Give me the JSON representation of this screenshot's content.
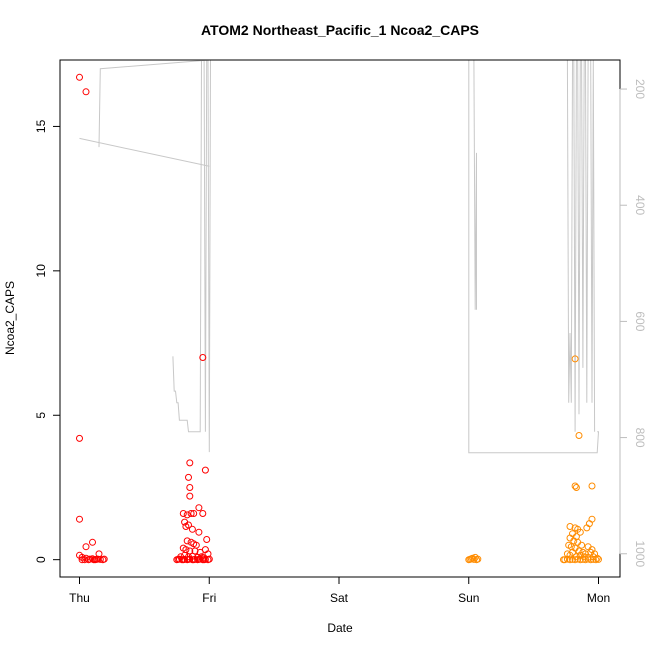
{
  "chart_data": {
    "type": "scatter",
    "title": "ATOM2 Northeast_Pacific_1 Ncoa2_CAPS",
    "xlabel": "Date",
    "ylabel": "Ncoa2_CAPS",
    "x_ticks": [
      "Thu",
      "Fri",
      "Sat",
      "Sun",
      "Mon"
    ],
    "y_ticks": [
      "0",
      "5",
      "10",
      "15"
    ],
    "ylim": [
      -0.6,
      17.3
    ],
    "right_axis": {
      "ticks": [
        "200",
        "400",
        "600",
        "800",
        "1000"
      ],
      "tick_values": [
        200,
        400,
        600,
        800,
        1000
      ],
      "range_top": 150,
      "range_bottom": 1040,
      "reversed": true,
      "color": "#bdbdbd"
    },
    "colors": {
      "red": "#ff0000",
      "orange": "#ff8c00",
      "grey": "#c8c8c8"
    },
    "series": [
      {
        "color": "#ff0000",
        "points": [
          [
            0.0,
            16.7
          ],
          [
            0.05,
            16.2
          ],
          [
            0.0,
            4.2
          ],
          [
            0.0,
            1.4
          ],
          [
            0.1,
            0.6
          ],
          [
            0.05,
            0.45
          ],
          [
            0.0,
            0.15
          ],
          [
            0.02,
            0.08
          ],
          [
            0.05,
            0.05
          ],
          [
            0.08,
            0.02
          ],
          [
            0.1,
            0.03
          ],
          [
            0.12,
            0.0
          ],
          [
            0.14,
            0.02
          ],
          [
            0.15,
            0.2
          ],
          [
            0.16,
            0.01
          ],
          [
            0.04,
            0.0
          ],
          [
            0.07,
            0.0
          ],
          [
            0.11,
            0.0
          ],
          [
            0.13,
            0.01
          ],
          [
            0.02,
            0.0
          ],
          [
            0.18,
            0.0
          ],
          [
            0.19,
            0.02
          ],
          [
            0.95,
            7.0
          ],
          [
            0.85,
            3.35
          ],
          [
            0.97,
            3.1
          ],
          [
            0.84,
            2.85
          ],
          [
            0.85,
            2.5
          ],
          [
            0.85,
            2.2
          ],
          [
            0.83,
            1.55
          ],
          [
            0.86,
            1.6
          ],
          [
            0.88,
            1.6
          ],
          [
            0.92,
            1.8
          ],
          [
            0.95,
            1.6
          ],
          [
            0.8,
            1.6
          ],
          [
            0.81,
            1.3
          ],
          [
            0.82,
            1.15
          ],
          [
            0.84,
            1.2
          ],
          [
            0.87,
            1.05
          ],
          [
            0.92,
            0.95
          ],
          [
            0.98,
            0.7
          ],
          [
            0.83,
            0.65
          ],
          [
            0.86,
            0.6
          ],
          [
            0.88,
            0.55
          ],
          [
            0.9,
            0.5
          ],
          [
            0.8,
            0.4
          ],
          [
            0.82,
            0.35
          ],
          [
            0.85,
            0.3
          ],
          [
            0.89,
            0.3
          ],
          [
            0.93,
            0.25
          ],
          [
            0.97,
            0.35
          ],
          [
            0.99,
            0.2
          ],
          [
            0.78,
            0.1
          ],
          [
            0.81,
            0.15
          ],
          [
            0.84,
            0.1
          ],
          [
            0.87,
            0.12
          ],
          [
            0.91,
            0.08
          ],
          [
            0.94,
            0.1
          ],
          [
            0.96,
            0.06
          ],
          [
            0.75,
            0.0
          ],
          [
            0.77,
            0.02
          ],
          [
            0.79,
            0.0
          ],
          [
            0.81,
            0.01
          ],
          [
            0.83,
            0.0
          ],
          [
            0.85,
            0.02
          ],
          [
            0.87,
            0.0
          ],
          [
            0.89,
            0.01
          ],
          [
            0.91,
            0.0
          ],
          [
            0.93,
            0.02
          ],
          [
            0.95,
            0.0
          ],
          [
            0.97,
            0.01
          ],
          [
            0.99,
            0.0
          ],
          [
            1.0,
            0.02
          ],
          [
            0.76,
            0.01
          ],
          [
            0.8,
            0.0
          ],
          [
            0.84,
            0.01
          ],
          [
            0.88,
            0.0
          ],
          [
            0.92,
            0.01
          ],
          [
            0.96,
            0.0
          ]
        ]
      },
      {
        "color": "#ff8c00",
        "points": [
          [
            3.0,
            0.0
          ],
          [
            3.02,
            0.03
          ],
          [
            3.04,
            0.01
          ],
          [
            3.05,
            0.08
          ],
          [
            3.06,
            0.0
          ],
          [
            3.03,
            0.05
          ],
          [
            3.07,
            0.02
          ],
          [
            3.01,
            0.01
          ],
          [
            3.82,
            6.95
          ],
          [
            3.85,
            4.3
          ],
          [
            3.82,
            2.55
          ],
          [
            3.83,
            2.5
          ],
          [
            3.95,
            2.55
          ],
          [
            3.95,
            1.4
          ],
          [
            3.93,
            1.25
          ],
          [
            3.78,
            1.15
          ],
          [
            3.82,
            1.1
          ],
          [
            3.84,
            1.05
          ],
          [
            3.91,
            1.1
          ],
          [
            3.86,
            0.95
          ],
          [
            3.8,
            0.9
          ],
          [
            3.83,
            0.8
          ],
          [
            3.78,
            0.75
          ],
          [
            3.81,
            0.65
          ],
          [
            3.84,
            0.6
          ],
          [
            3.87,
            0.5
          ],
          [
            3.92,
            0.45
          ],
          [
            3.95,
            0.35
          ],
          [
            3.77,
            0.5
          ],
          [
            3.79,
            0.45
          ],
          [
            3.82,
            0.4
          ],
          [
            3.85,
            0.3
          ],
          [
            3.88,
            0.25
          ],
          [
            3.9,
            0.2
          ],
          [
            3.94,
            0.25
          ],
          [
            3.97,
            0.2
          ],
          [
            3.76,
            0.2
          ],
          [
            3.78,
            0.15
          ],
          [
            3.8,
            0.25
          ],
          [
            3.83,
            0.1
          ],
          [
            3.86,
            0.15
          ],
          [
            3.89,
            0.1
          ],
          [
            3.92,
            0.08
          ],
          [
            3.96,
            0.1
          ],
          [
            3.99,
            0.05
          ],
          [
            3.74,
            0.0
          ],
          [
            3.76,
            0.02
          ],
          [
            3.78,
            0.0
          ],
          [
            3.8,
            0.01
          ],
          [
            3.82,
            0.0
          ],
          [
            3.84,
            0.02
          ],
          [
            3.86,
            0.0
          ],
          [
            3.88,
            0.01
          ],
          [
            3.9,
            0.0
          ],
          [
            3.92,
            0.02
          ],
          [
            3.94,
            0.0
          ],
          [
            3.96,
            0.01
          ],
          [
            3.98,
            0.0
          ],
          [
            4.0,
            0.01
          ],
          [
            3.73,
            0.0
          ]
        ]
      }
    ],
    "depth_trace_color": "#c8c8c8",
    "depth_trace": [
      [
        -0.01,
        150
      ],
      [
        0.0,
        150
      ],
      [
        0.0,
        280
      ],
      [
        0.01,
        280
      ],
      [
        0.02,
        800
      ],
      [
        0.03,
        150
      ],
      [
        0.06,
        150
      ],
      [
        0.07,
        760
      ],
      [
        0.08,
        150
      ],
      [
        0.1,
        150
      ],
      [
        0.1,
        820
      ],
      [
        0.13,
        820
      ],
      [
        0.14,
        150
      ],
      [
        0.15,
        150
      ],
      [
        0.15,
        300
      ],
      [
        0.16,
        165
      ],
      [
        0.19,
        165
      ],
      [
        0.2,
        150
      ],
      [
        1.0,
        150
      ],
      [
        1.0,
        150
      ],
      [
        0.99,
        333
      ],
      [
        0.0,
        285
      ]
    ],
    "depth_segments": [
      [
        [
          0.0,
          285
        ],
        [
          1.0,
          333
        ]
      ],
      [
        [
          0.15,
          300
        ],
        [
          0.16,
          165
        ],
        [
          1.0,
          150
        ],
        [
          1.7,
          150
        ]
      ],
      [
        [
          0.72,
          660
        ],
        [
          0.73,
          720
        ],
        [
          0.74,
          720
        ],
        [
          0.75,
          740
        ],
        [
          0.76,
          740
        ],
        [
          0.77,
          770
        ],
        [
          0.83,
          770
        ],
        [
          0.84,
          790
        ],
        [
          0.93,
          790
        ],
        [
          0.94,
          150
        ],
        [
          0.96,
          150
        ],
        [
          0.97,
          790
        ],
        [
          0.98,
          150
        ],
        [
          0.99,
          150
        ],
        [
          1.0,
          825
        ],
        [
          1.01,
          150
        ]
      ],
      [
        [
          3.03,
          150
        ],
        [
          3.04,
          150
        ],
        [
          3.05,
          580
        ],
        [
          3.06,
          310
        ],
        [
          3.06,
          580
        ]
      ],
      [
        [
          3.0,
          150
        ],
        [
          3.0,
          826
        ],
        [
          3.99,
          826
        ],
        [
          4.0,
          790
        ],
        [
          3.99,
          790
        ]
      ],
      [
        [
          3.75,
          150
        ],
        [
          3.76,
          150
        ],
        [
          3.77,
          740
        ],
        [
          3.78,
          620
        ],
        [
          3.79,
          740
        ],
        [
          3.8,
          150
        ],
        [
          3.81,
          150
        ],
        [
          3.82,
          790
        ],
        [
          3.83,
          150
        ],
        [
          3.84,
          150
        ],
        [
          3.85,
          760
        ],
        [
          3.86,
          150
        ],
        [
          3.87,
          150
        ],
        [
          3.88,
          680
        ],
        [
          3.89,
          150
        ],
        [
          3.9,
          150
        ],
        [
          3.91,
          740
        ],
        [
          3.92,
          150
        ],
        [
          3.94,
          150
        ],
        [
          3.95,
          740
        ],
        [
          3.96,
          150
        ],
        [
          3.97,
          790
        ]
      ]
    ]
  }
}
